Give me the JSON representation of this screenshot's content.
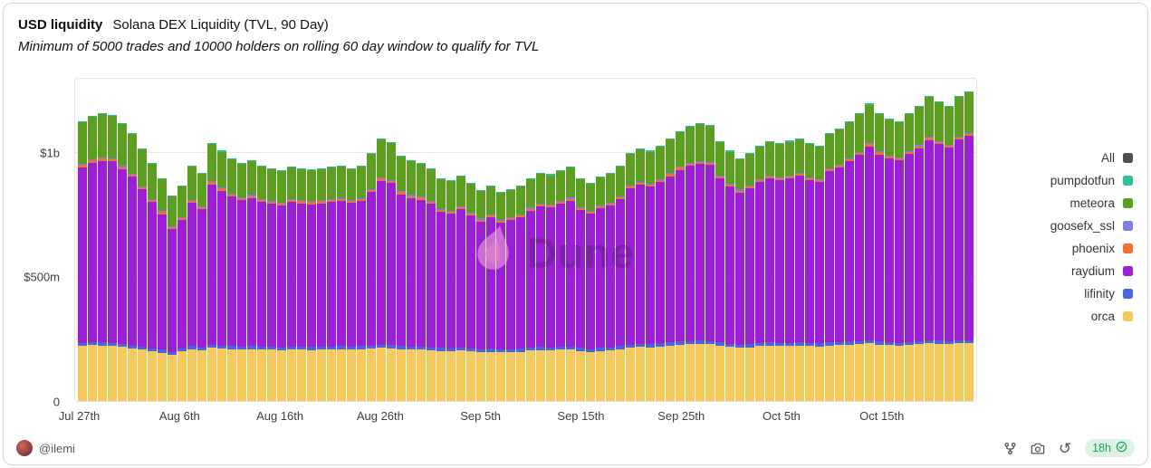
{
  "header": {
    "title_bold": "USD liquidity",
    "title_rest": "Solana DEX Liquidity (TVL, 90 Day)",
    "subtitle": "Minimum of 5000 trades and 10000 holders on rolling 60 day window to qualify for TVL"
  },
  "legend": {
    "items": [
      {
        "label": "All",
        "color": "#4f4f4f"
      },
      {
        "label": "pumpdotfun",
        "color": "#2fbf9f"
      },
      {
        "label": "meteora",
        "color": "#5b9e20"
      },
      {
        "label": "goosefx_ssl",
        "color": "#7b7fe4"
      },
      {
        "label": "phoenix",
        "color": "#ef7234"
      },
      {
        "label": "raydium",
        "color": "#9c1fd6"
      },
      {
        "label": "lifinity",
        "color": "#4a63e0"
      },
      {
        "label": "orca",
        "color": "#f5c95c"
      }
    ]
  },
  "footer": {
    "author": "@ilemi",
    "refresh_badge": "18h"
  },
  "watermark_text": "Dune",
  "chart_data": {
    "type": "bar",
    "stacked": true,
    "title": "Solana DEX Liquidity (TVL, 90 Day)",
    "subtitle": "Minimum of 5000 trades and 10000 holders on rolling 60 day window to qualify for TVL",
    "unit": "USD millions",
    "num_bars": 90,
    "ylim": [
      0,
      1300
    ],
    "yticks": [
      {
        "value": 0,
        "label": "0"
      },
      {
        "value": 500,
        "label": "$500m"
      },
      {
        "value": 1000,
        "label": "$1b"
      }
    ],
    "x_tick_positions": [
      0,
      10,
      20,
      30,
      40,
      50,
      60,
      70,
      80
    ],
    "x_tick_labels": [
      "Jul 27th",
      "Aug 6th",
      "Aug 16th",
      "Aug 26th",
      "Sep 5th",
      "Sep 15th",
      "Sep 25th",
      "Oct 5th",
      "Oct 15th"
    ],
    "stack_order_bottom_to_top": [
      "orca",
      "lifinity",
      "raydium",
      "phoenix",
      "goosefx_ssl",
      "meteora",
      "pumpdotfun"
    ],
    "series": [
      {
        "name": "orca",
        "color": "#f5c95c",
        "values": [
          222,
          225,
          224,
          223,
          218,
          212,
          208,
          200,
          195,
          185,
          200,
          210,
          205,
          215,
          212,
          210,
          208,
          210,
          208,
          207,
          205,
          208,
          207,
          206,
          207,
          208,
          210,
          208,
          210,
          212,
          215,
          213,
          210,
          208,
          207,
          205,
          202,
          200,
          203,
          200,
          196,
          199,
          196,
          197,
          199,
          203,
          206,
          205,
          207,
          209,
          202,
          198,
          202,
          205,
          210,
          216,
          219,
          217,
          220,
          224,
          228,
          230,
          231,
          230,
          224,
          219,
          215,
          217,
          221,
          224,
          222,
          223,
          224,
          222,
          220,
          224,
          226,
          228,
          230,
          233,
          228,
          225,
          223,
          226,
          229,
          233,
          231,
          229,
          232,
          234
        ]
      },
      {
        "name": "lifinity",
        "color": "#4a63e0",
        "constant": 12
      },
      {
        "name": "raydium",
        "color": "#9c1fd6",
        "values": [
          710,
          725,
          733,
          731,
          706,
          680,
          634,
          592,
          547,
          497,
          517,
          577,
          557,
          647,
          625,
          602,
          589,
          597,
          584,
          577,
          572,
          582,
          579,
          576,
          579,
          582,
          584,
          578,
          584,
          620,
          662,
          654,
          612,
          599,
          593,
          579,
          550,
          544,
          559,
          537,
          516,
          530,
          512,
          520,
          531,
          553,
          567,
          565,
          576,
          587,
          557,
          545,
          563,
          572,
          593,
          629,
          642,
          636,
          650,
          671,
          693,
          707,
          714,
          711,
          662,
          634,
          614,
          629,
          650,
          663,
          657,
          664,
          672,
          657,
          651,
          690,
          705,
          728,
          752,
          783,
          755,
          742,
          736,
          758,
          779,
          808,
          794,
          780,
          810,
          823
        ]
      },
      {
        "name": "phoenix",
        "color": "#ef7234",
        "constant": 8
      },
      {
        "name": "goosefx_ssl",
        "color": "#7b7fe4",
        "constant": 4
      },
      {
        "name": "meteora",
        "color": "#5b9e20",
        "values": [
          170,
          172,
          175,
          173,
          168,
          160,
          150,
          140,
          130,
          120,
          125,
          135,
          130,
          150,
          145,
          140,
          135,
          135,
          130,
          128,
          125,
          127,
          126,
          125,
          126,
          127,
          128,
          126,
          128,
          140,
          155,
          150,
          140,
          135,
          132,
          128,
          120,
          118,
          120,
          115,
          110,
          113,
          109,
          110,
          112,
          116,
          119,
          117,
          119,
          121,
          113,
          109,
          112,
          115,
          119,
          127,
          131,
          129,
          132,
          137,
          141,
          145,
          147,
          146,
          136,
          129,
          123,
          126,
          131,
          135,
          133,
          135,
          136,
          133,
          131,
          138,
          141,
          146,
          150,
          156,
          149,
          145,
          143,
          148,
          154,
          161,
          157,
          153,
          160,
          165
        ]
      },
      {
        "name": "pumpdotfun",
        "color": "#2fbf9f",
        "constant": 4
      }
    ]
  }
}
